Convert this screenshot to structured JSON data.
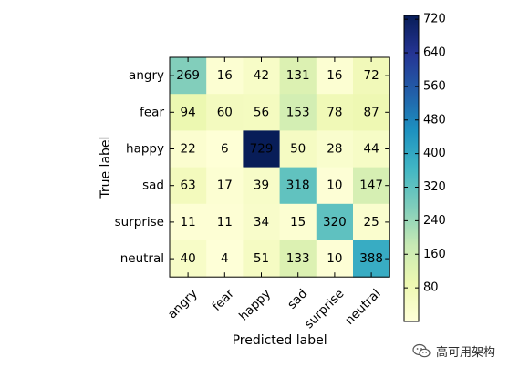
{
  "chart_data": {
    "type": "heatmap",
    "xlabel": "Predicted label",
    "ylabel": "True label",
    "x_categories": [
      "angry",
      "fear",
      "happy",
      "sad",
      "surprise",
      "neutral"
    ],
    "y_categories": [
      "angry",
      "fear",
      "happy",
      "sad",
      "surprise",
      "neutral"
    ],
    "values": [
      [
        269,
        16,
        42,
        131,
        16,
        72
      ],
      [
        94,
        60,
        56,
        153,
        78,
        87
      ],
      [
        22,
        6,
        729,
        50,
        28,
        44
      ],
      [
        63,
        17,
        39,
        318,
        10,
        147
      ],
      [
        11,
        11,
        34,
        15,
        320,
        25
      ],
      [
        40,
        4,
        51,
        133,
        10,
        388
      ]
    ],
    "value_range": [
      0,
      729
    ],
    "colormap": "YlGnBu",
    "colorbar": {
      "ticks": [
        80,
        160,
        240,
        320,
        400,
        480,
        560,
        640,
        720
      ],
      "range": [
        0,
        729
      ]
    }
  },
  "colors": {
    "text_dark": "#000000",
    "text_light": "#ffffff",
    "axis": "#000000"
  },
  "watermark": {
    "text": "高可用架构",
    "icon": "wechat-logo-icon"
  }
}
